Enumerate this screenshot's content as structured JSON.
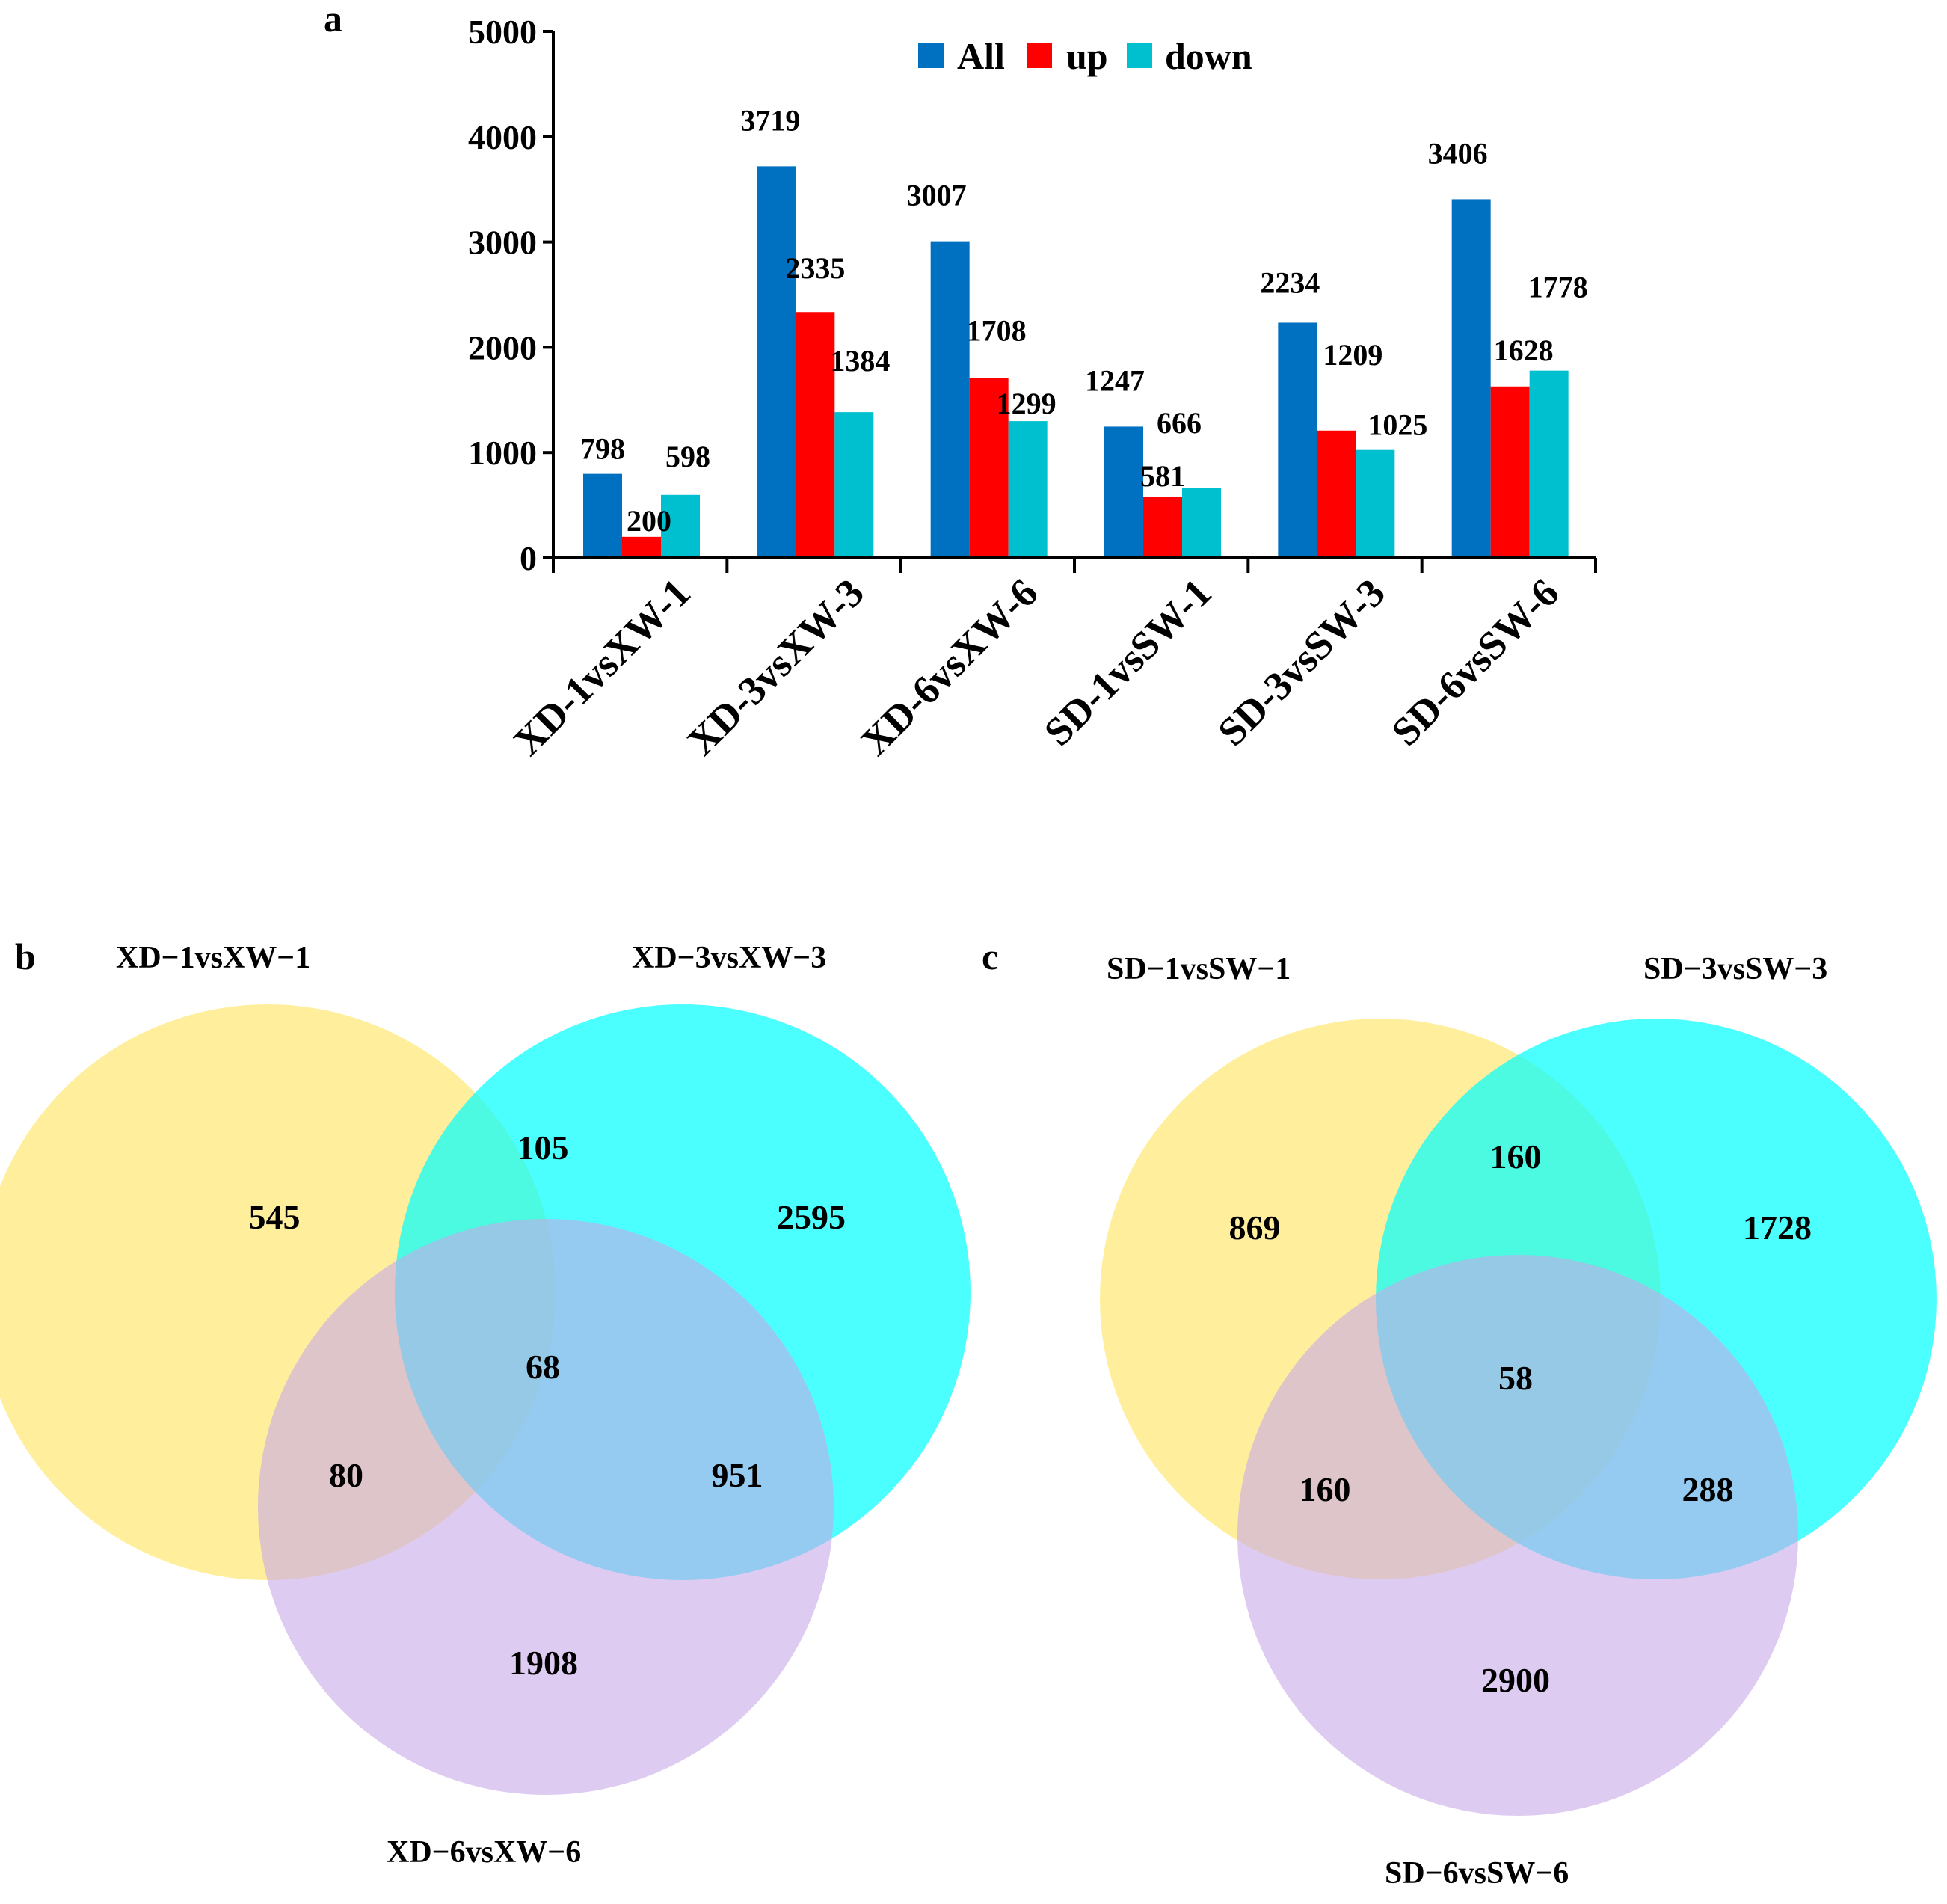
{
  "chart_data": [
    {
      "type": "bar",
      "panel": "a",
      "categories": [
        "XD-1vsXW-1",
        "XD-3vsXW-3",
        "XD-6vsXW-6",
        "SD-1vsSW-1",
        "SD-3vsSW-3",
        "SD-6vsSW-6"
      ],
      "series": [
        {
          "name": "All",
          "color": "#0070C0",
          "values": [
            798,
            3719,
            3007,
            1247,
            2234,
            3406
          ]
        },
        {
          "name": "up",
          "color": "#FF0000",
          "values": [
            200,
            2335,
            1708,
            581,
            1209,
            1628
          ]
        },
        {
          "name": "down",
          "color": "#00C0D0",
          "values": [
            598,
            1384,
            1299,
            666,
            1025,
            1778
          ]
        }
      ],
      "ylim": [
        0,
        5000
      ],
      "yticks": [
        0,
        1000,
        2000,
        3000,
        4000,
        5000
      ],
      "xlabel": "",
      "ylabel": "",
      "legend": "top-center",
      "grid": false
    },
    {
      "type": "venn",
      "panel": "b",
      "sets": [
        {
          "name": "XD−1vsXW−1",
          "color": "#FFE45C"
        },
        {
          "name": "XD−3vsXW−3",
          "color": "#00FFFF"
        },
        {
          "name": "XD−6vsXW−6",
          "color": "#C8A8E8"
        }
      ],
      "regions": {
        "only_1": 545,
        "only_2": 2595,
        "only_3": 1908,
        "r_1_2": 105,
        "r_1_3": 80,
        "r_2_3": 951,
        "r_1_2_3": 68
      }
    },
    {
      "type": "venn",
      "panel": "c",
      "sets": [
        {
          "name": "SD−1vsSW−1",
          "color": "#FFE45C"
        },
        {
          "name": "SD−3vsSW−3",
          "color": "#00FFFF"
        },
        {
          "name": "SD−6vsSW−6",
          "color": "#C8A8E8"
        }
      ],
      "regions": {
        "only_1": 869,
        "only_2": 1728,
        "only_3": 2900,
        "r_1_2": 160,
        "r_1_3": 160,
        "r_2_3": 288,
        "r_1_2_3": 58
      }
    }
  ]
}
